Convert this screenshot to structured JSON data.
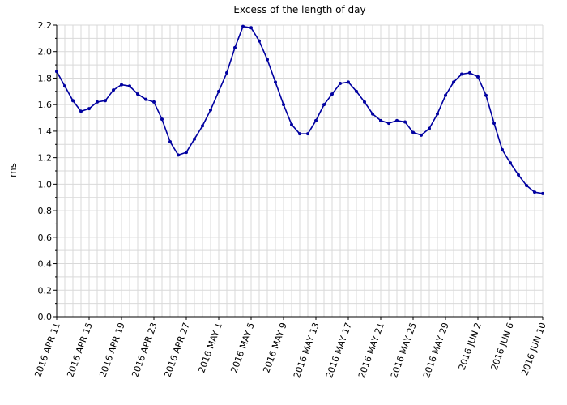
{
  "chart_data": {
    "type": "line",
    "title": "Excess of the length of day",
    "xlabel": "",
    "ylabel": "ms",
    "ylim": [
      0.0,
      2.2
    ],
    "xlim": [
      "2016-04-11",
      "2016-06-10"
    ],
    "grid": true,
    "legend": "none",
    "line_color": "#0000a0",
    "yticks": [
      "0.0",
      "0.2",
      "0.4",
      "0.6",
      "0.8",
      "1.0",
      "1.2",
      "1.4",
      "1.6",
      "1.8",
      "2.0",
      "2.2"
    ],
    "xticks": [
      {
        "label": "2016 APR 11",
        "date": "2016-04-11"
      },
      {
        "label": "2016 APR 15",
        "date": "2016-04-15"
      },
      {
        "label": "2016 APR 19",
        "date": "2016-04-19"
      },
      {
        "label": "2016 APR 23",
        "date": "2016-04-23"
      },
      {
        "label": "2016 APR 27",
        "date": "2016-04-27"
      },
      {
        "label": "2016 MAY 1",
        "date": "2016-05-01"
      },
      {
        "label": "2016 MAY 5",
        "date": "2016-05-05"
      },
      {
        "label": "2016 MAY 9",
        "date": "2016-05-09"
      },
      {
        "label": "2016 MAY 13",
        "date": "2016-05-13"
      },
      {
        "label": "2016 MAY 17",
        "date": "2016-05-17"
      },
      {
        "label": "2016 MAY 21",
        "date": "2016-05-21"
      },
      {
        "label": "2016 MAY 25",
        "date": "2016-05-25"
      },
      {
        "label": "2016 MAY 29",
        "date": "2016-05-29"
      },
      {
        "label": "2016 JUN 2",
        "date": "2016-06-02"
      },
      {
        "label": "2016 JUN 6",
        "date": "2016-06-06"
      },
      {
        "label": "2016 JUN 10",
        "date": "2016-06-10"
      }
    ],
    "series": [
      {
        "x": [
          "2016-04-11",
          "2016-04-12",
          "2016-04-13",
          "2016-04-14",
          "2016-04-15",
          "2016-04-16",
          "2016-04-17",
          "2016-04-18",
          "2016-04-19",
          "2016-04-20",
          "2016-04-21",
          "2016-04-22",
          "2016-04-23",
          "2016-04-24",
          "2016-04-25",
          "2016-04-26",
          "2016-04-27",
          "2016-04-28",
          "2016-04-29",
          "2016-04-30",
          "2016-05-01",
          "2016-05-02",
          "2016-05-03",
          "2016-05-04",
          "2016-05-05",
          "2016-05-06",
          "2016-05-07",
          "2016-05-08",
          "2016-05-09",
          "2016-05-10",
          "2016-05-11",
          "2016-05-12",
          "2016-05-13",
          "2016-05-14",
          "2016-05-15",
          "2016-05-16",
          "2016-05-17",
          "2016-05-18",
          "2016-05-19",
          "2016-05-20",
          "2016-05-21",
          "2016-05-22",
          "2016-05-23",
          "2016-05-24",
          "2016-05-25",
          "2016-05-26",
          "2016-05-27",
          "2016-05-28",
          "2016-05-29",
          "2016-05-30",
          "2016-05-31",
          "2016-06-01",
          "2016-06-02",
          "2016-06-03",
          "2016-06-04",
          "2016-06-05",
          "2016-06-06",
          "2016-06-07",
          "2016-06-08",
          "2016-06-09",
          "2016-06-10"
        ],
        "values": [
          1.85,
          1.74,
          1.63,
          1.55,
          1.57,
          1.62,
          1.63,
          1.71,
          1.75,
          1.74,
          1.68,
          1.64,
          1.62,
          1.49,
          1.32,
          1.22,
          1.24,
          1.34,
          1.44,
          1.56,
          1.7,
          1.84,
          2.03,
          2.19,
          2.18,
          2.08,
          1.94,
          1.77,
          1.6,
          1.45,
          1.38,
          1.38,
          1.48,
          1.6,
          1.68,
          1.76,
          1.77,
          1.7,
          1.62,
          1.53,
          1.48,
          1.46,
          1.48,
          1.47,
          1.39,
          1.37,
          1.42,
          1.53,
          1.67,
          1.77,
          1.83,
          1.84,
          1.81,
          1.67,
          1.46,
          1.26,
          1.16,
          1.07,
          0.99,
          0.94,
          0.93
        ]
      }
    ]
  }
}
